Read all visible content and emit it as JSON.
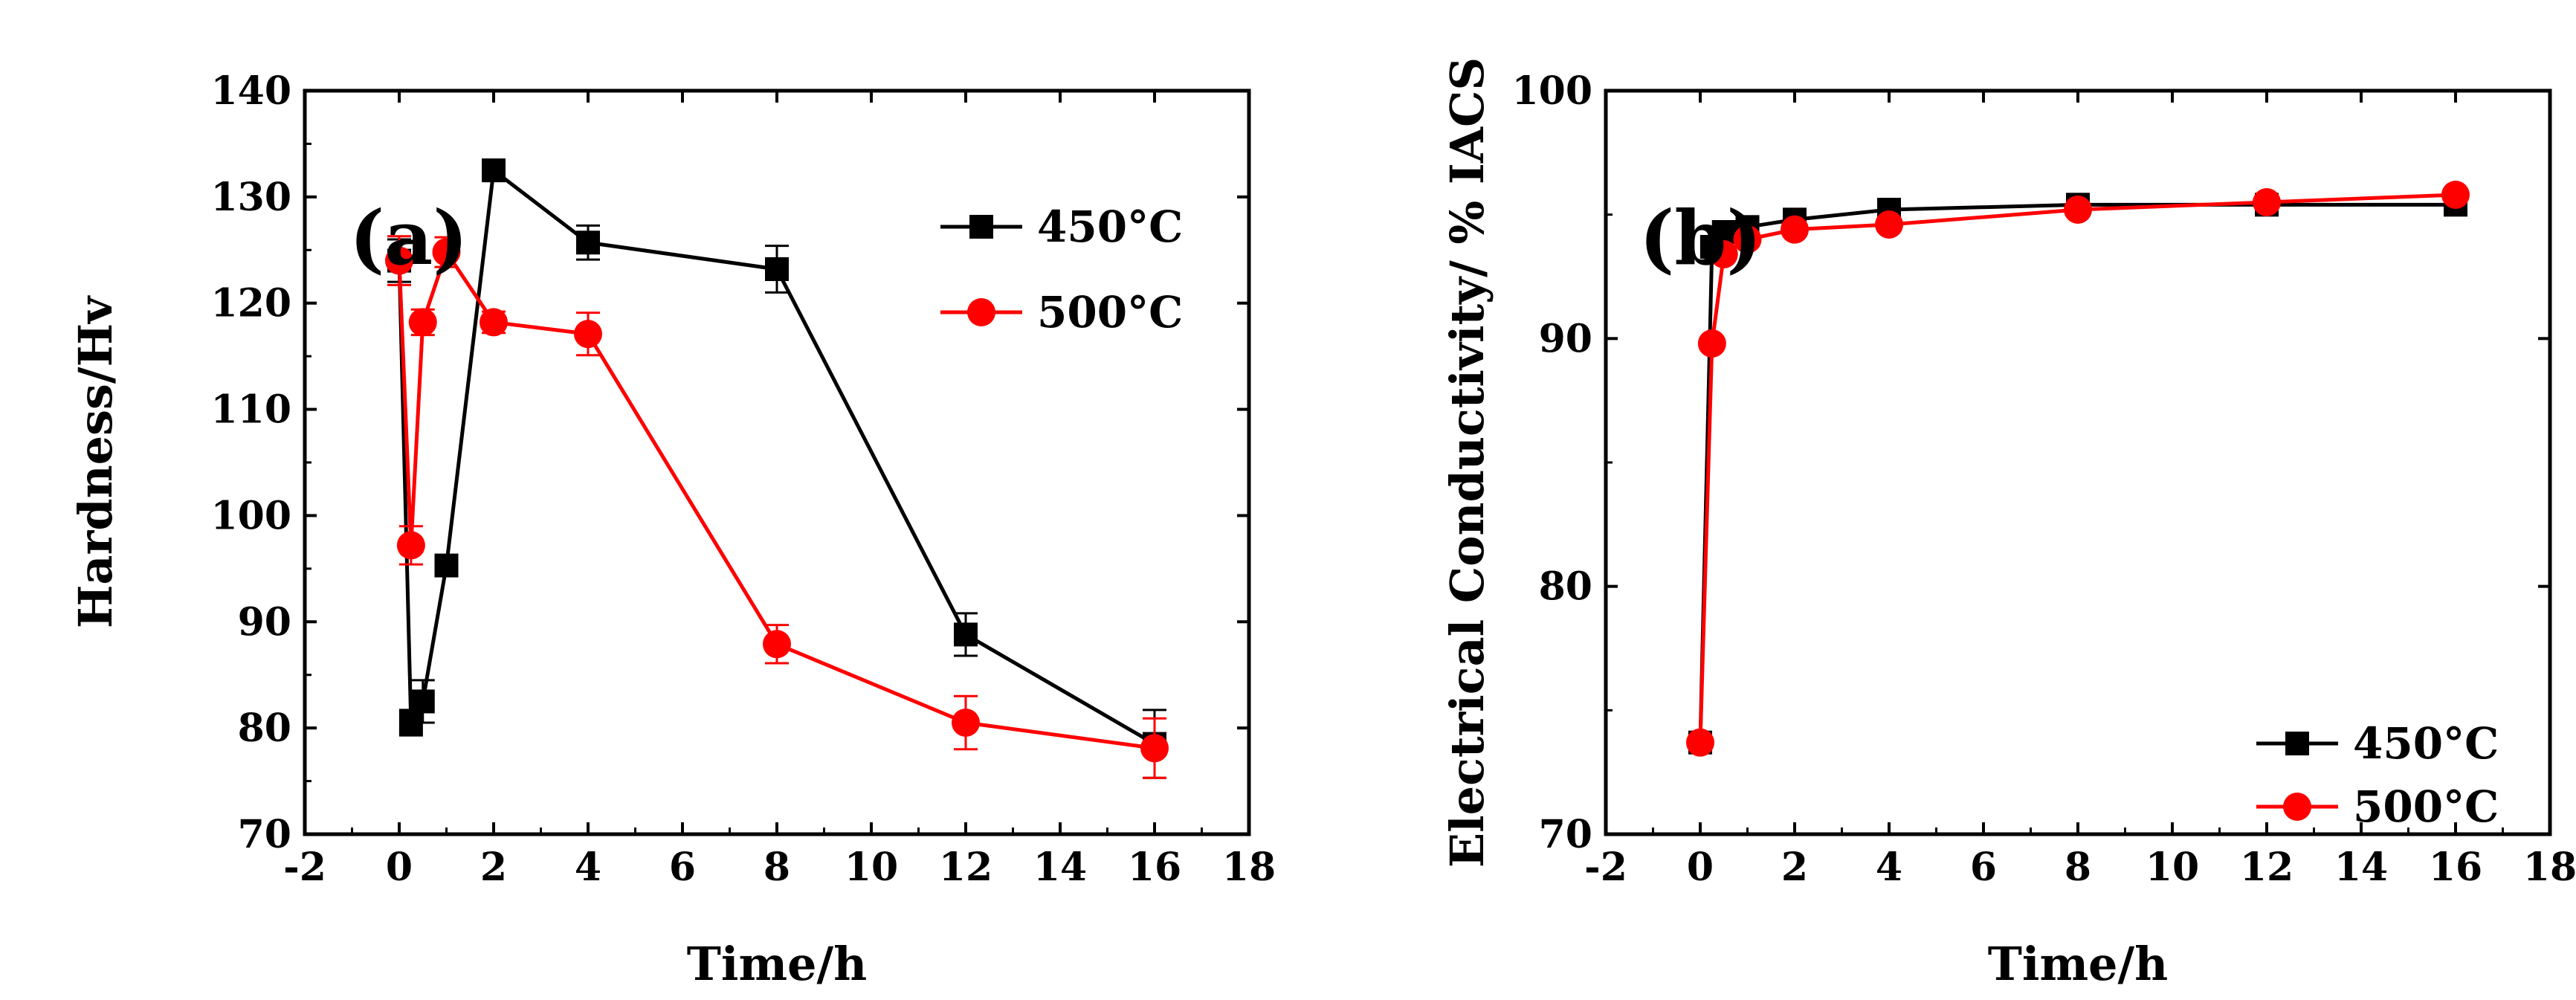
{
  "chart_data": [
    {
      "type": "line",
      "panel_label": "(a)",
      "title": "",
      "xlabel": "Time/h",
      "ylabel": "Hardness/Hv",
      "xlim": [
        -2,
        18
      ],
      "ylim": [
        70,
        140
      ],
      "xticks": [
        -2,
        0,
        2,
        4,
        6,
        8,
        10,
        12,
        14,
        16,
        18
      ],
      "yticks": [
        70,
        80,
        90,
        100,
        110,
        120,
        130,
        140
      ],
      "grid": false,
      "legend_position": "top-right",
      "series": [
        {
          "name": "450°C",
          "color": "#000000",
          "marker": "square",
          "x": [
            0,
            0.25,
            0.5,
            1,
            2,
            4,
            8,
            12,
            16
          ],
          "y": [
            124,
            80.5,
            82.5,
            95.3,
            132.5,
            125.7,
            123.2,
            88.8,
            78.5
          ],
          "err": [
            2.0,
            1.2,
            2.0,
            0,
            1.0,
            1.6,
            2.2,
            2.0,
            3.2
          ]
        },
        {
          "name": "500°C",
          "color": "#ff0000",
          "marker": "circle",
          "x": [
            0,
            0.25,
            0.5,
            1,
            2,
            4,
            8,
            12,
            16
          ],
          "y": [
            124,
            97.2,
            118.2,
            124.8,
            118.2,
            117.1,
            87.9,
            80.5,
            78.1
          ],
          "err": [
            2.3,
            1.8,
            1.2,
            1.4,
            1.0,
            2.0,
            1.8,
            2.5,
            2.8
          ]
        }
      ]
    },
    {
      "type": "line",
      "panel_label": "(b)",
      "title": "",
      "xlabel": "Time/h",
      "ylabel": "Electrical Conductivity/ % IACS",
      "xlim": [
        -2,
        18
      ],
      "ylim": [
        70,
        100
      ],
      "xticks": [
        -2,
        0,
        2,
        4,
        6,
        8,
        10,
        12,
        14,
        16,
        18
      ],
      "yticks": [
        70,
        80,
        90,
        100
      ],
      "grid": false,
      "legend_position": "bottom-right",
      "series": [
        {
          "name": "450°C",
          "color": "#000000",
          "marker": "square",
          "x": [
            0,
            0.25,
            0.5,
            1,
            2,
            4,
            8,
            12,
            16
          ],
          "y": [
            73.7,
            93.7,
            94.3,
            94.5,
            94.8,
            95.2,
            95.4,
            95.4,
            95.4
          ]
        },
        {
          "name": "500°C",
          "color": "#ff0000",
          "marker": "circle",
          "x": [
            0,
            0.25,
            0.5,
            1,
            2,
            4,
            8,
            12,
            16
          ],
          "y": [
            73.7,
            89.8,
            93.4,
            94.0,
            94.4,
            94.6,
            95.2,
            95.5,
            95.8
          ]
        }
      ]
    }
  ]
}
